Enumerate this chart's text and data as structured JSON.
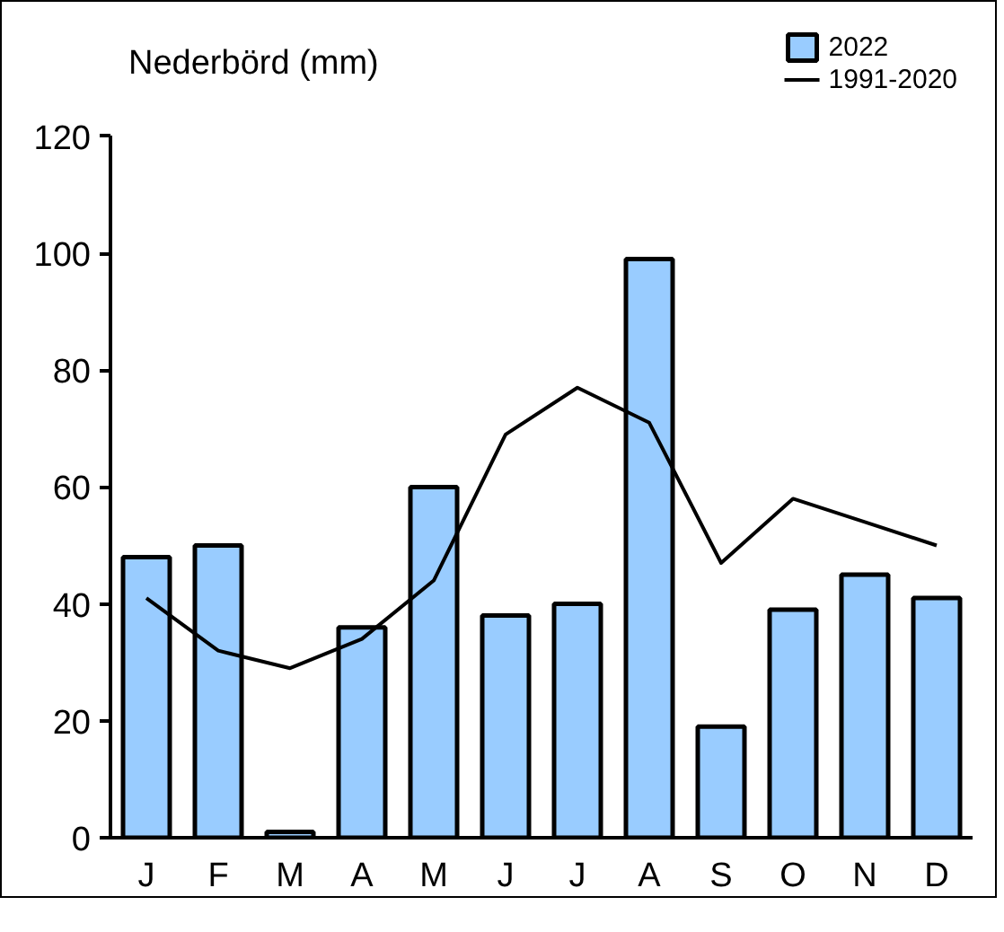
{
  "chart_data": {
    "type": "bar",
    "ylabel": "Nederbörd (mm)",
    "categories": [
      "J",
      "F",
      "M",
      "A",
      "M",
      "J",
      "J",
      "A",
      "S",
      "O",
      "N",
      "D"
    ],
    "series": [
      {
        "name": "2022",
        "color": "#99ccff",
        "values": [
          48,
          50,
          1,
          36,
          60,
          38,
          40,
          99,
          19,
          39,
          45,
          41
        ]
      },
      {
        "name": "1991-2020",
        "type": "line",
        "color": "#000000",
        "values": [
          41,
          32,
          29,
          34,
          44,
          69,
          77,
          71,
          47,
          58,
          54,
          50
        ]
      }
    ],
    "ylim": [
      0,
      120
    ],
    "yticks": [
      0,
      20,
      40,
      60,
      80,
      100,
      120
    ],
    "grid": false,
    "legend": "top right",
    "line_style": "solid",
    "marker": "none"
  }
}
